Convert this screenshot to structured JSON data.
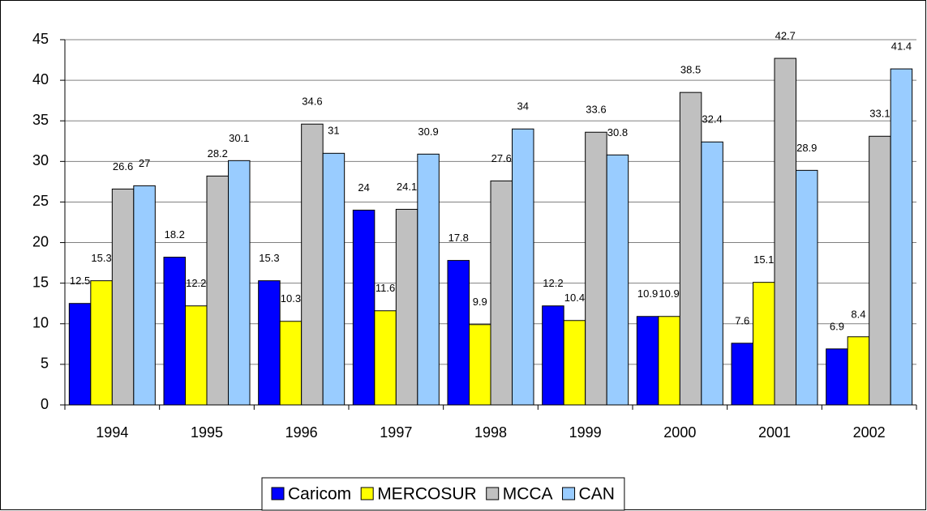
{
  "chart_data": {
    "type": "bar",
    "categories": [
      "1994",
      "1995",
      "1996",
      "1997",
      "1998",
      "1999",
      "2000",
      "2001",
      "2002"
    ],
    "series": [
      {
        "name": "Caricom",
        "color": "#0000ff",
        "values": [
          12.5,
          18.2,
          15.3,
          24,
          17.8,
          12.2,
          10.9,
          7.6,
          6.9
        ]
      },
      {
        "name": "MERCOSUR",
        "color": "#ffff00",
        "values": [
          15.3,
          12.2,
          10.3,
          11.6,
          9.9,
          10.4,
          10.9,
          15.1,
          8.4
        ]
      },
      {
        "name": "MCCA",
        "color": "#c0c0c0",
        "values": [
          26.6,
          28.2,
          34.6,
          24.1,
          27.6,
          33.6,
          38.5,
          42.7,
          33.1
        ]
      },
      {
        "name": "CAN",
        "color": "#99ccff",
        "values": [
          27,
          30.1,
          31,
          30.9,
          34,
          30.8,
          32.4,
          28.9,
          41.4
        ]
      }
    ],
    "ylim": [
      0,
      45
    ],
    "yticks": [
      0,
      5,
      10,
      15,
      20,
      25,
      30,
      35,
      40,
      45
    ],
    "grid": true,
    "legend": "bottom"
  }
}
